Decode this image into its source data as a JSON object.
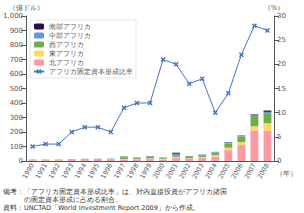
{
  "chart_data": {
    "type": "bar",
    "stacked": true,
    "categories": [
      1990,
      1991,
      1992,
      1993,
      1994,
      1995,
      1996,
      1997,
      1998,
      1999,
      2000,
      2001,
      2002,
      2003,
      2004,
      2005,
      2006,
      2007,
      2008
    ],
    "series": [
      {
        "name": "北アフリカ",
        "color": "#FF99A1",
        "values": [
          5,
          5,
          5,
          7,
          8,
          8,
          9,
          11,
          12,
          15,
          10,
          25,
          15,
          20,
          30,
          75,
          110,
          210,
          210
        ]
      },
      {
        "name": "東アフリカ",
        "color": "#FFD966",
        "values": [
          1,
          1,
          1,
          1,
          1,
          2,
          2,
          3,
          3,
          4,
          5,
          5,
          5,
          8,
          10,
          17,
          20,
          30,
          50
        ]
      },
      {
        "name": "西アフリカ",
        "color": "#70AD47",
        "values": [
          3,
          3,
          3,
          3,
          4,
          4,
          4,
          10,
          7,
          10,
          5,
          12,
          10,
          12,
          18,
          30,
          40,
          70,
          65
        ]
      },
      {
        "name": "中部アフリカ",
        "color": "#5B9BD5",
        "values": [
          1,
          1,
          1,
          2,
          2,
          2,
          2,
          3,
          3,
          4,
          3,
          8,
          3,
          3,
          4,
          6,
          8,
          12,
          14
        ]
      },
      {
        "name": "南部アフリカ",
        "color": "#2E0854",
        "values": [
          0,
          0,
          0,
          0,
          0,
          0,
          0,
          3,
          0,
          1,
          1,
          7,
          1,
          1,
          1,
          2,
          0,
          3,
          9
        ]
      },
      {
        "name": "アフリカ固定資本形成比率",
        "type": "line",
        "axis": "y2",
        "color": "#4472C4",
        "marker": "x",
        "values": [
          3,
          3.5,
          3.5,
          6,
          7,
          7,
          6,
          11,
          12,
          12,
          21,
          20,
          16,
          17,
          10,
          14,
          22,
          28,
          27
        ]
      }
    ],
    "xlabel": "（年）",
    "ylabel": "（億ドル）",
    "y2label": "（%）",
    "ylim": [
      0,
      1000
    ],
    "yticks": [
      0,
      100,
      200,
      300,
      400,
      500,
      600,
      700,
      800,
      900,
      1000
    ],
    "y2lim": [
      0,
      30
    ],
    "y2ticks": [
      0,
      5,
      10,
      15,
      20,
      25,
      30
    ],
    "grid": false,
    "legend": "upper left",
    "annotations": [
      "備考：「アフリカ固定資本形成比率」は、対内直接投資がアフリカ諸国",
      "　　　の固定資本形成に占める割合。",
      "資料：UNCTAD「World Investment Report 2009」から作成。"
    ]
  }
}
